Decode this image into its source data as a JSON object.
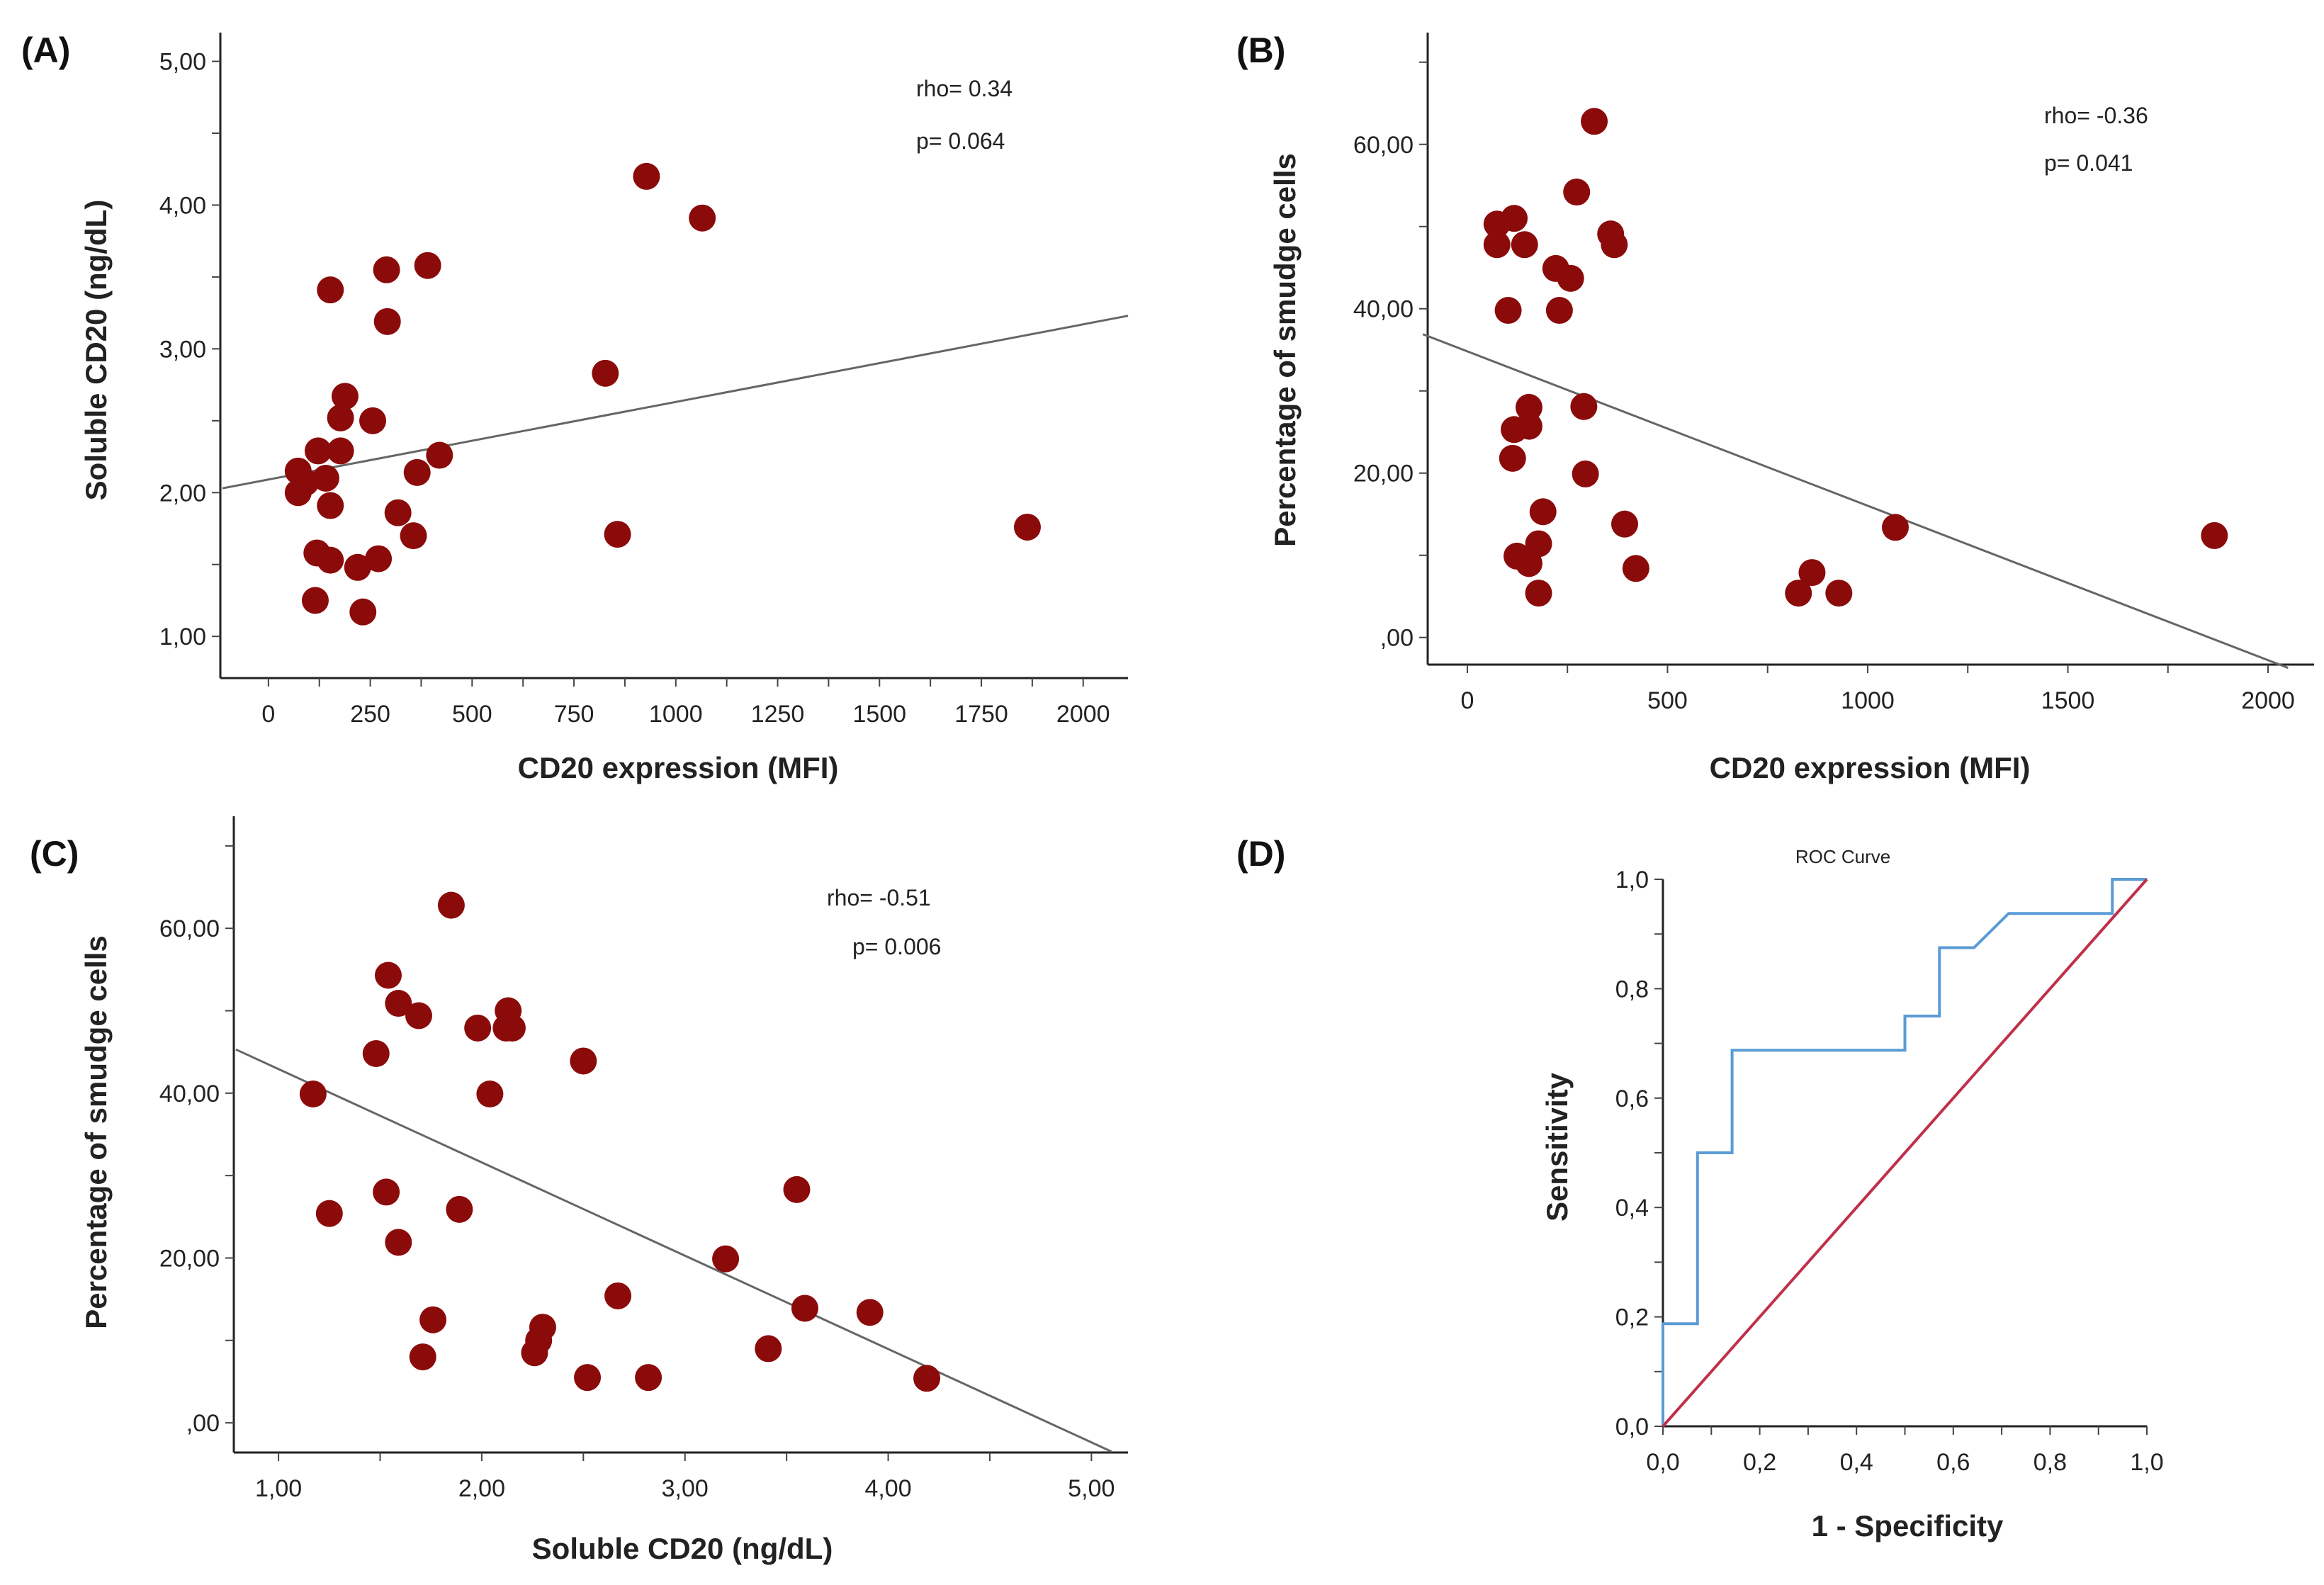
{
  "colors": {
    "points": "#8b0b0b",
    "fit_line": "#666666",
    "roc_curve": "#5b9bd5",
    "reference_line": "#c0304a"
  },
  "chart_data": [
    {
      "id": "A",
      "panel_label": "(A)",
      "type": "scatter",
      "xlabel": "CD20 expression  (MFI)",
      "ylabel": "Soluble CD20 (ng/dL)",
      "xlim": [
        -118,
        2110
      ],
      "ylim": [
        0.71,
        5.2
      ],
      "x_ticks": [
        0,
        125,
        250,
        375,
        500,
        625,
        750,
        875,
        1000,
        1125,
        1250,
        1375,
        1500,
        1625,
        1750,
        1875,
        2000
      ],
      "x_tick_labels": {
        "0": "0",
        "250": "250",
        "500": "500",
        "750": "750",
        "1000": "1000",
        "1250": "1250",
        "1500": "1500",
        "1750": "1750",
        "2000": "2000"
      },
      "y_ticks": [
        1,
        1.5,
        2,
        2.5,
        3,
        3.5,
        4,
        4.5,
        5
      ],
      "y_tick_labels": {
        "1": "1,00",
        "2": "2,00",
        "3": "3,00",
        "4": "4,00",
        "5": "5,00"
      },
      "annotations": [
        "rho= 0.34",
        "p= 0.064"
      ],
      "fit_line": [
        [
          -113,
          2.03
        ],
        [
          2110,
          3.23
        ]
      ],
      "points": [
        [
          152,
          3.41
        ],
        [
          290,
          3.55
        ],
        [
          391,
          3.58
        ],
        [
          292,
          3.19
        ],
        [
          928,
          4.2
        ],
        [
          1065,
          3.91
        ],
        [
          827,
          2.83
        ],
        [
          188,
          2.67
        ],
        [
          177,
          2.52
        ],
        [
          256,
          2.5
        ],
        [
          122,
          2.29
        ],
        [
          177,
          2.29
        ],
        [
          420,
          2.26
        ],
        [
          73,
          2.15
        ],
        [
          365,
          2.14
        ],
        [
          141,
          2.1
        ],
        [
          91,
          2.07
        ],
        [
          73,
          2.0
        ],
        [
          152,
          1.91
        ],
        [
          318,
          1.86
        ],
        [
          356,
          1.7
        ],
        [
          857,
          1.71
        ],
        [
          1863,
          1.76
        ],
        [
          119,
          1.58
        ],
        [
          152,
          1.53
        ],
        [
          270,
          1.54
        ],
        [
          219,
          1.48
        ],
        [
          115,
          1.25
        ],
        [
          232,
          1.17
        ]
      ]
    },
    {
      "id": "B",
      "panel_label": "(B)",
      "type": "scatter",
      "xlabel": "CD20 expression  (MFI)",
      "ylabel": "Percentage of smudge cells",
      "xlim": [
        -99,
        2115
      ],
      "ylim": [
        -3.3,
        73.6
      ],
      "x_ticks": [
        0,
        250,
        500,
        750,
        1000,
        1250,
        1500,
        1750,
        2000
      ],
      "x_tick_labels": {
        "0": "0",
        "500": "500",
        "1000": "1000",
        "1500": "1500",
        "2000": "2000"
      },
      "y_ticks": [
        0,
        10,
        20,
        30,
        40,
        50,
        60,
        70
      ],
      "y_tick_labels": {
        "0": ",00",
        "20": "20,00",
        "40": "40,00",
        "60": "60,00"
      },
      "annotations": [
        "rho= -0.36",
        "p= 0.041"
      ],
      "fit_line": [
        [
          -111,
          36.9
        ],
        [
          2050,
          -3.7
        ]
      ],
      "points": [
        [
          317,
          62.8
        ],
        [
          273,
          54.2
        ],
        [
          74,
          50.3
        ],
        [
          74,
          47.8
        ],
        [
          117,
          51
        ],
        [
          143,
          47.8
        ],
        [
          358,
          49.1
        ],
        [
          367,
          47.8
        ],
        [
          221,
          44.9
        ],
        [
          258,
          43.7
        ],
        [
          102,
          39.8
        ],
        [
          230,
          39.8
        ],
        [
          291,
          28.1
        ],
        [
          154,
          28
        ],
        [
          154,
          25.7
        ],
        [
          117,
          25.3
        ],
        [
          113,
          21.8
        ],
        [
          295,
          19.9
        ],
        [
          189,
          15.3
        ],
        [
          393,
          13.8
        ],
        [
          178,
          11.4
        ],
        [
          124,
          9.9
        ],
        [
          154,
          9
        ],
        [
          421,
          8.4
        ],
        [
          178,
          5.4
        ],
        [
          861,
          7.9
        ],
        [
          827,
          5.4
        ],
        [
          928,
          5.4
        ],
        [
          1069,
          13.4
        ],
        [
          1866,
          12.4
        ]
      ]
    },
    {
      "id": "C",
      "panel_label": "(C)",
      "type": "scatter",
      "xlabel": "Soluble CD20 (ng/dL)",
      "ylabel": "Percentage of smudge cells",
      "xlim": [
        0.78,
        5.18
      ],
      "ylim": [
        -3.6,
        73.6
      ],
      "x_ticks": [
        1,
        1.5,
        2,
        2.5,
        3,
        3.5,
        4,
        4.5,
        5
      ],
      "x_tick_labels": {
        "1": "1,00",
        "2": "2,00",
        "3": "3,00",
        "4": "4,00",
        "5": "5,00"
      },
      "y_ticks": [
        0,
        10,
        20,
        30,
        40,
        50,
        60,
        70
      ],
      "y_tick_labels": {
        "0": ",00",
        "20": "20,00",
        "40": "40,00",
        "60": "60,00"
      },
      "annotations": [
        "rho= -0.51",
        "p= 0.006"
      ],
      "fit_line": [
        [
          0.79,
          45.3
        ],
        [
          5.1,
          -3.5
        ]
      ],
      "points": [
        [
          1.85,
          62.8
        ],
        [
          1.54,
          54.3
        ],
        [
          1.59,
          50.9
        ],
        [
          1.69,
          49.4
        ],
        [
          1.98,
          47.9
        ],
        [
          2.13,
          50
        ],
        [
          2.12,
          47.9
        ],
        [
          2.15,
          47.9
        ],
        [
          1.48,
          44.8
        ],
        [
          2.5,
          43.9
        ],
        [
          1.17,
          39.9
        ],
        [
          2.04,
          39.9
        ],
        [
          3.55,
          28.3
        ],
        [
          1.53,
          28
        ],
        [
          1.25,
          25.4
        ],
        [
          1.89,
          25.9
        ],
        [
          1.59,
          21.9
        ],
        [
          3.2,
          19.9
        ],
        [
          2.67,
          15.4
        ],
        [
          3.59,
          13.9
        ],
        [
          3.91,
          13.4
        ],
        [
          1.76,
          12.5
        ],
        [
          2.3,
          11.6
        ],
        [
          2.28,
          10
        ],
        [
          2.26,
          8.5
        ],
        [
          1.71,
          8
        ],
        [
          3.41,
          9
        ],
        [
          2.52,
          5.5
        ],
        [
          2.82,
          5.5
        ],
        [
          4.19,
          5.4
        ]
      ]
    },
    {
      "id": "D",
      "panel_label": "(D)",
      "type": "line",
      "title": "ROC Curve",
      "xlabel": "1 - Specificity",
      "ylabel": "Sensitivity",
      "xlim": [
        0,
        1
      ],
      "ylim": [
        0,
        1
      ],
      "x_ticks": [
        0,
        0.1,
        0.2,
        0.3,
        0.4,
        0.5,
        0.6,
        0.7,
        0.8,
        0.9,
        1
      ],
      "x_tick_labels": {
        "0": "0,0",
        "0.2": "0,2",
        "0.4": "0,4",
        "0.6": "0,6",
        "0.8": "0,8",
        "1": "1,0"
      },
      "y_ticks": [
        0,
        0.1,
        0.2,
        0.3,
        0.4,
        0.5,
        0.6,
        0.7,
        0.8,
        0.9,
        1
      ],
      "y_tick_labels": {
        "0": "0,0",
        "0.2": "0,2",
        "0.4": "0,4",
        "0.6": "0,6",
        "0.8": "0,8",
        "1": "1,0"
      },
      "series": [
        {
          "values": [
            [
              0,
              0
            ],
            [
              0,
              0.1875
            ],
            [
              0.0714,
              0.1875
            ],
            [
              0.0714,
              0.5
            ],
            [
              0.1429,
              0.5
            ],
            [
              0.1429,
              0.6875
            ],
            [
              0.5,
              0.6875
            ],
            [
              0.5,
              0.75
            ],
            [
              0.5714,
              0.75
            ],
            [
              0.5714,
              0.875
            ],
            [
              0.6429,
              0.875
            ],
            [
              0.7143,
              0.9375
            ],
            [
              0.9286,
              0.9375
            ],
            [
              0.9286,
              1
            ],
            [
              1,
              1
            ]
          ]
        },
        {
          "values": [
            [
              0,
              0
            ],
            [
              1,
              1
            ]
          ]
        }
      ]
    }
  ]
}
